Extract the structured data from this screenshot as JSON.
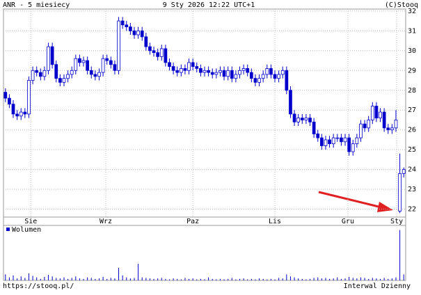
{
  "chart_data": {
    "type": "candlestick",
    "title": "ANR - 5 miesiecy",
    "subtitle": "9 Sty 2026 12:22 UTC+1",
    "source": "(C)Stooq",
    "footer_left": "https://stooq.pl/",
    "footer_right": "Interwal Dzienny",
    "color": "#0000cc",
    "grid": true,
    "ylim": [
      21.6,
      32.1
    ],
    "yticks": [
      22,
      23,
      24,
      25,
      26,
      27,
      28,
      29,
      30,
      31,
      32
    ],
    "xlim": [
      -0.5,
      102.5
    ],
    "xticks": [
      {
        "value": 6.5,
        "label": "Sie"
      },
      {
        "value": 25.7,
        "label": "Wrz"
      },
      {
        "value": 48,
        "label": "Paz"
      },
      {
        "value": 69,
        "label": "Lis"
      },
      {
        "value": 87.7,
        "label": "Gru"
      },
      {
        "value": 100.2,
        "label": "Sty"
      }
    ],
    "open": [
      27.9,
      27.6,
      27.3,
      26.8,
      26.7,
      26.9,
      26.8,
      28.5,
      29.0,
      28.9,
      28.7,
      29.0,
      30.2,
      29.3,
      28.6,
      28.4,
      28.6,
      28.8,
      29.0,
      29.6,
      29.4,
      29.5,
      29.0,
      28.8,
      28.7,
      28.9,
      29.6,
      29.5,
      29.3,
      29.0,
      31.5,
      31.3,
      31.2,
      31.0,
      30.8,
      31.0,
      30.7,
      30.2,
      30.0,
      29.9,
      29.7,
      30.1,
      29.4,
      29.2,
      29.0,
      28.9,
      29.1,
      29.0,
      29.4,
      29.2,
      29.1,
      28.9,
      29.0,
      28.9,
      28.8,
      28.9,
      29.0,
      28.7,
      29.0,
      28.6,
      28.8,
      29.0,
      29.1,
      28.9,
      28.6,
      28.4,
      28.6,
      28.8,
      29.1,
      28.8,
      28.6,
      28.8,
      29.0,
      28.0,
      26.8,
      26.4,
      26.6,
      26.5,
      26.6,
      26.4,
      25.8,
      25.6,
      25.2,
      25.5,
      25.3,
      25.6,
      25.6,
      25.4,
      25.6,
      24.9,
      25.3,
      25.6,
      26.3,
      26.1,
      26.5,
      27.2,
      26.6,
      26.9,
      26.1,
      26.0,
      26.1,
      21.9,
      23.8
    ],
    "high": [
      28.1,
      27.8,
      27.5,
      27.0,
      27.1,
      27.1,
      28.7,
      29.2,
      29.2,
      29.1,
      29.2,
      30.4,
      30.4,
      29.5,
      28.8,
      28.8,
      29.0,
      29.2,
      29.8,
      29.8,
      29.7,
      29.7,
      29.2,
      29.0,
      29.1,
      29.8,
      29.8,
      29.7,
      29.5,
      31.7,
      31.7,
      31.5,
      31.4,
      31.2,
      31.2,
      31.2,
      30.9,
      30.4,
      30.2,
      30.1,
      30.3,
      30.3,
      29.6,
      29.4,
      29.2,
      29.3,
      29.3,
      29.6,
      29.6,
      29.4,
      29.3,
      29.2,
      29.2,
      29.1,
      29.1,
      29.2,
      29.2,
      29.2,
      29.2,
      29.0,
      29.2,
      29.3,
      29.3,
      29.1,
      28.8,
      28.8,
      29.0,
      29.3,
      29.3,
      29.0,
      29.0,
      29.2,
      29.2,
      28.2,
      27.0,
      26.8,
      26.8,
      26.8,
      26.8,
      26.6,
      26.0,
      25.8,
      25.7,
      25.7,
      25.8,
      25.8,
      25.8,
      25.8,
      25.8,
      25.5,
      25.8,
      26.5,
      26.5,
      26.7,
      27.4,
      27.4,
      27.1,
      27.1,
      26.3,
      26.3,
      27.0,
      24.8,
      24.1
    ],
    "low": [
      27.4,
      27.1,
      26.6,
      26.5,
      26.5,
      26.6,
      26.6,
      28.3,
      28.7,
      28.5,
      28.5,
      28.8,
      29.1,
      28.4,
      28.2,
      28.2,
      28.4,
      28.6,
      28.8,
      29.2,
      29.2,
      28.8,
      28.6,
      28.5,
      28.5,
      28.7,
      29.3,
      29.1,
      28.8,
      28.8,
      31.1,
      31.0,
      30.8,
      30.6,
      30.6,
      30.5,
      30.0,
      29.8,
      29.7,
      29.5,
      29.5,
      29.2,
      29.0,
      28.8,
      28.7,
      28.7,
      28.8,
      28.8,
      29.0,
      28.9,
      28.7,
      28.7,
      28.7,
      28.6,
      28.6,
      28.7,
      28.5,
      28.5,
      28.4,
      28.4,
      28.6,
      28.8,
      28.7,
      28.4,
      28.2,
      28.2,
      28.4,
      28.6,
      28.6,
      28.4,
      28.4,
      28.6,
      27.8,
      26.6,
      26.2,
      26.2,
      26.3,
      26.3,
      26.2,
      25.6,
      25.4,
      25.0,
      25.0,
      25.1,
      25.1,
      25.4,
      25.2,
      25.2,
      24.7,
      24.7,
      25.1,
      25.4,
      25.9,
      25.9,
      26.3,
      26.4,
      26.4,
      25.9,
      25.8,
      25.8,
      25.9,
      21.8,
      23.6
    ],
    "close": [
      27.6,
      27.3,
      26.8,
      26.7,
      26.9,
      26.8,
      28.5,
      29.0,
      28.9,
      28.7,
      29.0,
      30.2,
      29.3,
      28.6,
      28.4,
      28.6,
      28.8,
      29.0,
      29.6,
      29.4,
      29.5,
      29.0,
      28.8,
      28.7,
      28.9,
      29.6,
      29.5,
      29.3,
      29.0,
      31.5,
      31.3,
      31.2,
      31.0,
      30.8,
      31.0,
      30.7,
      30.2,
      30.0,
      29.9,
      29.7,
      30.1,
      29.4,
      29.2,
      29.0,
      28.9,
      29.1,
      29.0,
      29.4,
      29.2,
      29.1,
      28.9,
      29.0,
      28.9,
      28.8,
      28.9,
      29.0,
      28.7,
      29.0,
      28.6,
      28.8,
      29.0,
      29.1,
      28.9,
      28.6,
      28.4,
      28.6,
      28.8,
      29.1,
      28.8,
      28.6,
      28.8,
      29.0,
      28.0,
      26.8,
      26.4,
      26.6,
      26.5,
      26.6,
      26.4,
      25.8,
      25.6,
      25.2,
      25.5,
      25.3,
      25.6,
      25.6,
      25.4,
      25.6,
      24.9,
      25.3,
      25.6,
      26.3,
      26.1,
      26.5,
      27.2,
      26.6,
      26.9,
      26.1,
      26.0,
      26.1,
      26.5,
      23.8,
      24.0
    ],
    "volume": {
      "name": "Wolumen",
      "ylim": [
        0,
        10.5
      ],
      "values": [
        1.2,
        0.6,
        1.0,
        0.4,
        0.8,
        0.5,
        1.4,
        0.9,
        0.6,
        0.3,
        0.7,
        1.1,
        0.8,
        0.5,
        0.4,
        0.6,
        0.3,
        0.5,
        0.8,
        0.4,
        0.3,
        0.6,
        0.5,
        0.3,
        0.4,
        0.7,
        0.3,
        0.5,
        0.4,
        2.5,
        1.0,
        0.6,
        0.4,
        0.5,
        3.3,
        0.6,
        0.5,
        0.4,
        0.3,
        0.4,
        0.5,
        0.3,
        0.2,
        0.4,
        0.3,
        0.2,
        0.5,
        0.3,
        0.4,
        0.2,
        0.3,
        0.2,
        0.6,
        0.3,
        0.2,
        0.3,
        0.2,
        0.3,
        0.5,
        0.2,
        0.3,
        0.4,
        0.2,
        0.3,
        0.2,
        0.4,
        0.3,
        0.2,
        0.3,
        0.2,
        0.5,
        0.4,
        1.2,
        0.8,
        0.6,
        0.4,
        0.3,
        0.2,
        0.3,
        0.5,
        0.6,
        0.4,
        0.5,
        0.3,
        0.4,
        0.6,
        0.3,
        0.4,
        0.7,
        0.5,
        0.4,
        0.6,
        0.5,
        0.3,
        0.5,
        0.4,
        0.3,
        0.5,
        0.3,
        0.4,
        0.6,
        10.0,
        1.2
      ]
    }
  }
}
